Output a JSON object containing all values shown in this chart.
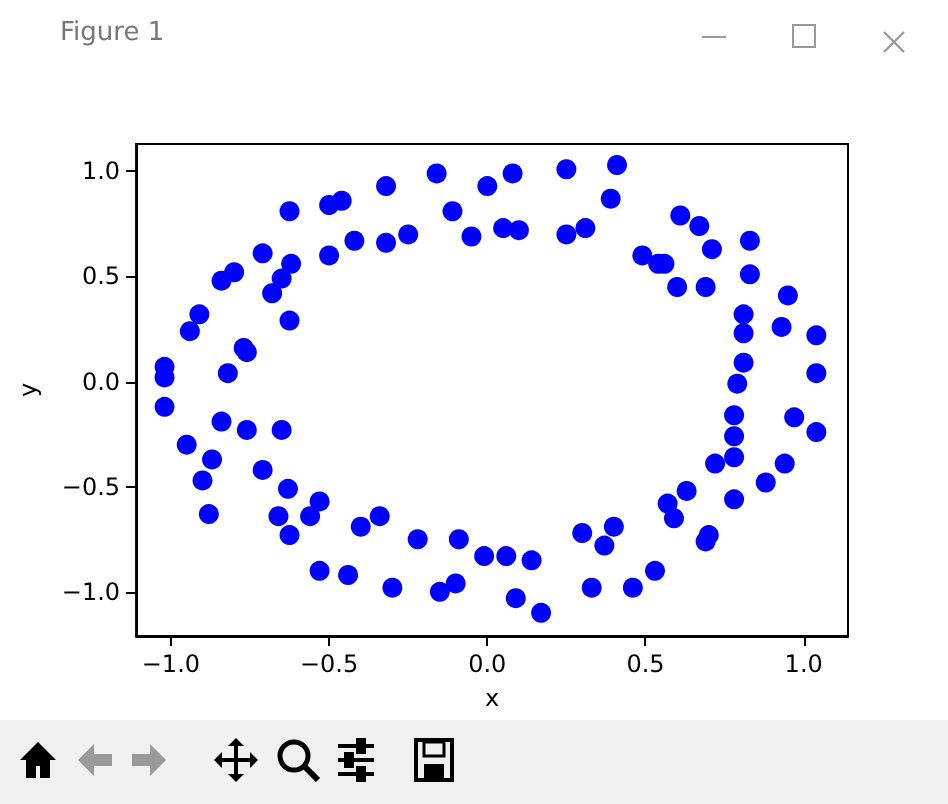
{
  "chart_data": {
    "type": "scatter",
    "title": "Figure 1",
    "xlabel": "x",
    "ylabel": "y",
    "x": [
      -0.625,
      -0.5,
      -0.46,
      -0.32,
      -0.16,
      0.0,
      -0.11,
      -0.05,
      0.05,
      -0.25,
      -0.32,
      -0.42,
      -0.5,
      -0.62,
      -0.71,
      -0.8,
      -0.84,
      -0.65,
      -0.68,
      -0.91,
      -0.94,
      -0.625,
      -0.77,
      -0.76,
      -1.02,
      -1.02,
      -0.82,
      -1.02,
      -0.84,
      0.08,
      0.25,
      0.41,
      0.39,
      0.1,
      0.25,
      0.31,
      0.61,
      0.67,
      0.71,
      0.83,
      0.49,
      0.54,
      0.56,
      0.6,
      0.69,
      0.83,
      0.95,
      0.81,
      0.81,
      0.93,
      1.04,
      1.04,
      0.81,
      0.79,
      0.78,
      0.97,
      0.78,
      1.04,
      0.78,
      0.72,
      0.94,
      0.88,
      0.78,
      0.63,
      0.57,
      0.59,
      0.7,
      0.69,
      0.4,
      0.3,
      0.37,
      0.53,
      0.46,
      0.33,
      0.06,
      0.14,
      0.09,
      0.17,
      -0.76,
      -0.65,
      -0.95,
      -0.87,
      -0.9,
      -0.88,
      -0.71,
      -0.63,
      -0.53,
      -0.56,
      -0.66,
      -0.625,
      -0.4,
      -0.34,
      -0.53,
      -0.44,
      -0.3,
      -0.22,
      -0.09,
      -0.15,
      -0.1,
      -0.01
    ],
    "values": [
      0.81,
      0.84,
      0.86,
      0.93,
      0.99,
      0.93,
      0.81,
      0.69,
      0.73,
      0.7,
      0.66,
      0.67,
      0.6,
      0.56,
      0.61,
      0.52,
      0.48,
      0.49,
      0.42,
      0.32,
      0.24,
      0.29,
      0.16,
      0.14,
      0.07,
      0.02,
      0.04,
      -0.12,
      -0.19,
      0.99,
      1.01,
      1.03,
      0.87,
      0.72,
      0.7,
      0.73,
      0.79,
      0.74,
      0.63,
      0.67,
      0.6,
      0.56,
      0.56,
      0.45,
      0.45,
      0.51,
      0.41,
      0.32,
      0.23,
      0.26,
      0.22,
      0.04,
      0.09,
      -0.01,
      -0.16,
      -0.17,
      -0.26,
      -0.24,
      -0.36,
      -0.39,
      -0.39,
      -0.48,
      -0.56,
      -0.52,
      -0.58,
      -0.65,
      -0.73,
      -0.76,
      -0.69,
      -0.72,
      -0.78,
      -0.9,
      -0.98,
      -0.98,
      -0.83,
      -0.85,
      -1.03,
      -1.1,
      -0.23,
      -0.23,
      -0.3,
      -0.37,
      -0.47,
      -0.63,
      -0.42,
      -0.51,
      -0.57,
      -0.64,
      -0.64,
      -0.73,
      -0.69,
      -0.64,
      -0.9,
      -0.92,
      -0.98,
      -0.75,
      -0.75,
      -1.0,
      -0.96,
      -0.83
    ],
    "color": "#0000ff",
    "marker": "circle",
    "grid": false,
    "xlim": [
      -1.11,
      1.14
    ],
    "ylim": [
      -1.21,
      1.13
    ],
    "xticks": [
      {
        "value": -1,
        "label": "−1.0"
      },
      {
        "value": -0.5,
        "label": "−0.5"
      },
      {
        "value": 0,
        "label": "0.0"
      },
      {
        "value": 0.5,
        "label": "0.5"
      },
      {
        "value": 1,
        "label": "1.0"
      }
    ],
    "yticks": [
      {
        "value": -1,
        "label": "−1.0"
      },
      {
        "value": -0.5,
        "label": "−0.5"
      },
      {
        "value": 0,
        "label": "0.0"
      },
      {
        "value": 0.5,
        "label": "0.5"
      },
      {
        "value": 1,
        "label": "1.0"
      }
    ]
  }
}
